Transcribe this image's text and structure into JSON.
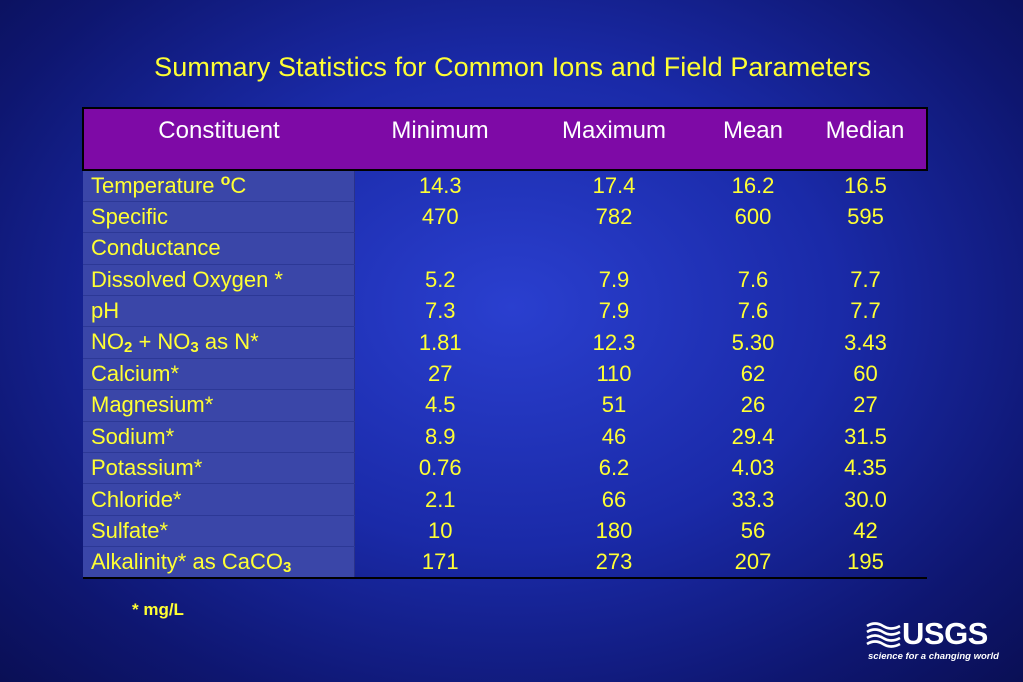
{
  "title": "Summary Statistics for Common Ions and Field Parameters",
  "headers": [
    "Constituent",
    "Minimum",
    "Maximum",
    "Mean",
    "Median"
  ],
  "rows": [
    {
      "name": "Temperature ",
      "name_sup": "o",
      "name_after": "C",
      "min": "14.3",
      "max": "17.4",
      "mean": "16.2",
      "median": "16.5"
    },
    {
      "name": "Specific",
      "min": "470",
      "max": "782",
      "mean": "600",
      "median": "595"
    },
    {
      "name": "Conductance",
      "min": "",
      "max": "",
      "mean": "",
      "median": ""
    },
    {
      "name": "Dissolved Oxygen *",
      "min": "5.2",
      "max": "7.9",
      "mean": "7.6",
      "median": "7.7"
    },
    {
      "name": "pH",
      "min": "7.3",
      "max": "7.9",
      "mean": "7.6",
      "median": "7.7"
    },
    {
      "name": "NO",
      "name_sub": "2",
      "name_mid": " + NO",
      "name_sub2": "3",
      "name_after": " as N*",
      "min": "1.81",
      "max": "12.3",
      "mean": "5.30",
      "median": "3.43"
    },
    {
      "name": "Calcium*",
      "min": "27",
      "max": "110",
      "mean": "62",
      "median": "60"
    },
    {
      "name": "Magnesium*",
      "min": "4.5",
      "max": "51",
      "mean": "26",
      "median": "27"
    },
    {
      "name": "Sodium*",
      "min": "8.9",
      "max": "46",
      "mean": "29.4",
      "median": "31.5"
    },
    {
      "name": "Potassium*",
      "min": "0.76",
      "max": "6.2",
      "mean": "4.03",
      "median": "4.35"
    },
    {
      "name": "Chloride*",
      "min": "2.1",
      "max": "66",
      "mean": "33.3",
      "median": "30.0"
    },
    {
      "name": "Sulfate*",
      "min": "10",
      "max": "180",
      "mean": "56",
      "median": "42"
    },
    {
      "name": "Alkalinity* as CaCO",
      "name_sub": "3",
      "min": "171",
      "max": "273",
      "mean": "207",
      "median": "195"
    }
  ],
  "footnote": "* mg/L",
  "logo": {
    "wordmark": "USGS",
    "tagline": "science for a changing world"
  },
  "colors": {
    "text": "#ffff33",
    "header_bg": "#7e0aa6",
    "name_col_bg": "#3a46a8",
    "background": "#1a2aa8"
  }
}
